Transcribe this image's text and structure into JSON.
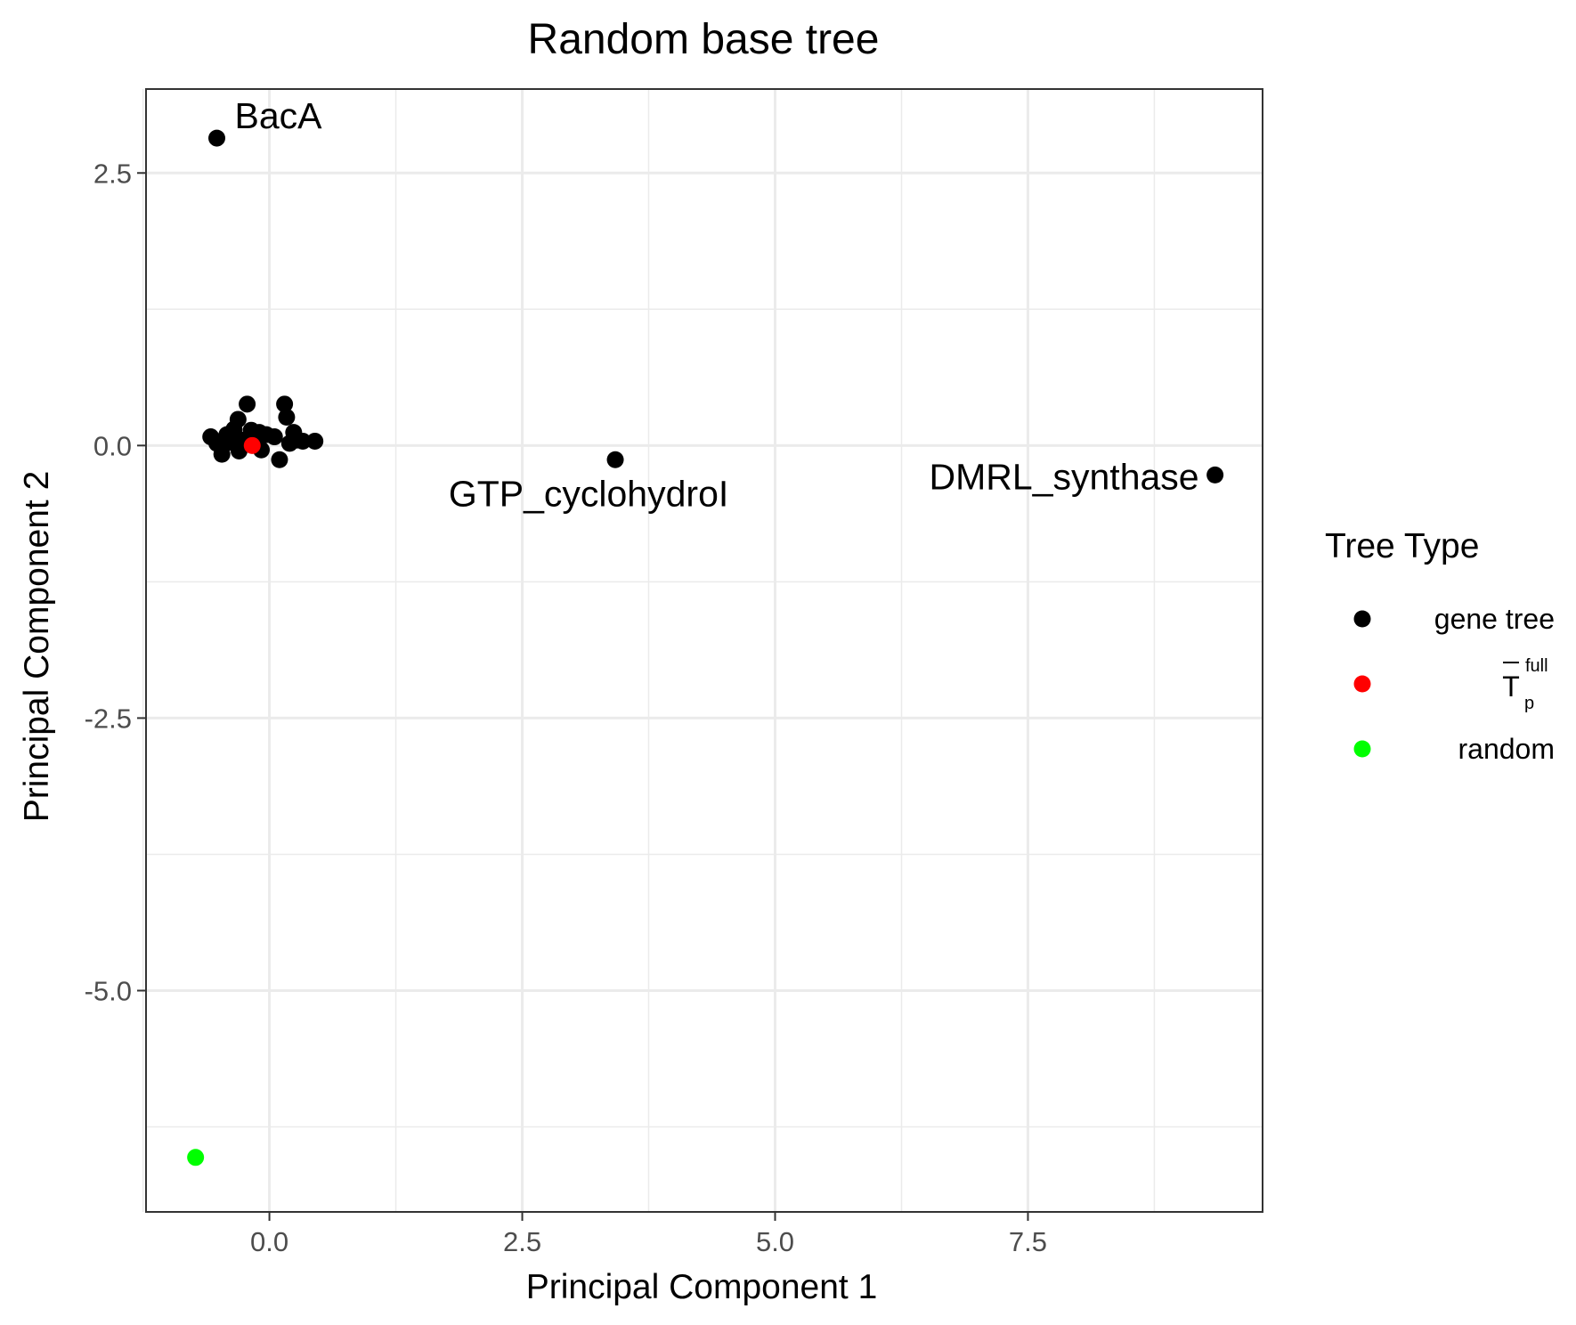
{
  "chart_data": {
    "type": "scatter",
    "title": "Random base tree",
    "xlabel": "Principal Component 1",
    "ylabel": "Principal Component 2",
    "xlim": [
      -1.22,
      9.82
    ],
    "ylim": [
      -7.03,
      3.27
    ],
    "x_ticks": [
      {
        "value": 0.0,
        "label": "0.0"
      },
      {
        "value": 2.5,
        "label": "2.5"
      },
      {
        "value": 5.0,
        "label": "5.0"
      },
      {
        "value": 7.5,
        "label": "7.5"
      }
    ],
    "y_ticks": [
      {
        "value": 2.5,
        "label": "2.5"
      },
      {
        "value": 0.0,
        "label": "0.0"
      },
      {
        "value": -2.5,
        "label": "-2.5"
      },
      {
        "value": -5.0,
        "label": "-5.0"
      }
    ],
    "x_minor_grid": [
      -1.25,
      1.25,
      3.75,
      6.25,
      8.75
    ],
    "y_minor_grid": [
      1.25,
      -1.25,
      -3.75,
      -6.25
    ],
    "grid": true,
    "legend": {
      "title": "Tree Type",
      "placement": "right",
      "items": [
        {
          "key": "gene_tree",
          "label": "gene tree",
          "color": "#000000"
        },
        {
          "key": "tp_full",
          "label": "T",
          "sup": "full",
          "sub": "p",
          "overline": true,
          "color": "#ff0000"
        },
        {
          "key": "random",
          "label": "random",
          "color": "#00ff00"
        }
      ]
    },
    "series": [
      {
        "name": "gene tree",
        "color": "#000000",
        "points": [
          {
            "x": -0.52,
            "y": 2.82,
            "label": "BacA"
          },
          {
            "x": 3.42,
            "y": -0.13,
            "label": "GTP_cyclohydroI"
          },
          {
            "x": 9.35,
            "y": -0.27,
            "label": "DMRL_synthase"
          },
          {
            "x": -0.58,
            "y": 0.08
          },
          {
            "x": -0.52,
            "y": 0.02
          },
          {
            "x": -0.47,
            "y": -0.08
          },
          {
            "x": -0.42,
            "y": 0.1
          },
          {
            "x": -0.38,
            "y": 0.03
          },
          {
            "x": -0.35,
            "y": 0.15
          },
          {
            "x": -0.31,
            "y": 0.24
          },
          {
            "x": -0.3,
            "y": -0.05
          },
          {
            "x": -0.26,
            "y": 0.05
          },
          {
            "x": -0.22,
            "y": 0.38
          },
          {
            "x": -0.18,
            "y": 0.14
          },
          {
            "x": -0.14,
            "y": 0.04
          },
          {
            "x": -0.1,
            "y": 0.12
          },
          {
            "x": -0.08,
            "y": -0.04
          },
          {
            "x": -0.03,
            "y": 0.1
          },
          {
            "x": 0.05,
            "y": 0.08
          },
          {
            "x": 0.1,
            "y": -0.13
          },
          {
            "x": 0.15,
            "y": 0.38
          },
          {
            "x": 0.17,
            "y": 0.26
          },
          {
            "x": 0.2,
            "y": 0.02
          },
          {
            "x": 0.24,
            "y": 0.12
          },
          {
            "x": 0.27,
            "y": 0.05
          },
          {
            "x": 0.33,
            "y": 0.04
          },
          {
            "x": 0.45,
            "y": 0.04
          }
        ]
      },
      {
        "name": "T_p^full",
        "color": "#ff0000",
        "points": [
          {
            "x": -0.17,
            "y": 0.0
          }
        ]
      },
      {
        "name": "random",
        "color": "#00ff00",
        "points": [
          {
            "x": -0.73,
            "y": -6.53
          }
        ]
      }
    ]
  }
}
